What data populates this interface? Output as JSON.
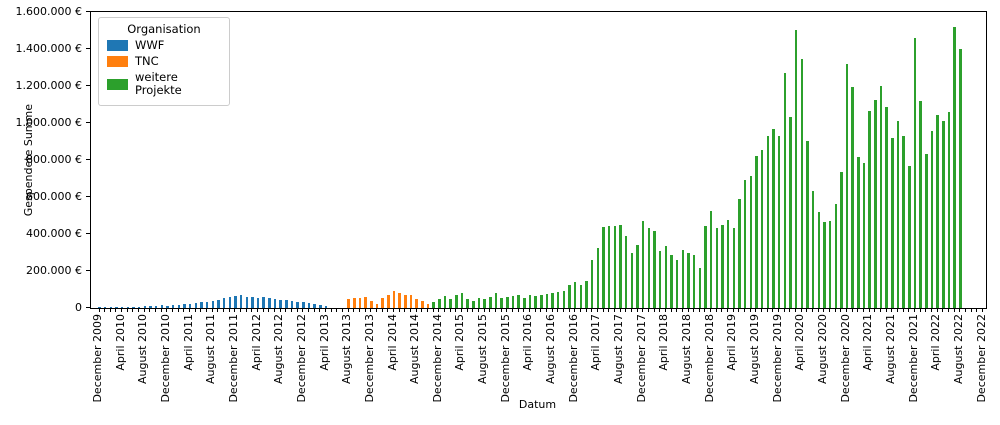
{
  "chart_data": {
    "type": "bar",
    "title": "",
    "xlabel": "Datum",
    "ylabel": "Gespendete Summe",
    "currency": "€",
    "ylim": [
      0,
      1600000
    ],
    "y_tick_interval": 200000,
    "x_range": [
      "2009-12",
      "2022-12"
    ],
    "x_minor_tick": "monthly",
    "x_label_step_months": 4,
    "grid": false,
    "legend_title": "Organisation",
    "legend_position": "upper left",
    "y_tick_labels": [
      "0",
      "200.000 €",
      "400.000 €",
      "600.000 €",
      "800.000 €",
      "1.000.000 €",
      "1.200.000 €",
      "1.400.000 €",
      "1.600.000 €"
    ],
    "x_tick_labels": [
      "December 2009",
      "April 2010",
      "August 2010",
      "December 2010",
      "April 2011",
      "August 2011",
      "December 2011",
      "April 2012",
      "August 2012",
      "December 2012",
      "April 2013",
      "August 2013",
      "December 2013",
      "April 2014",
      "August 2014",
      "December 2014",
      "April 2015",
      "August 2015",
      "December 2015",
      "April 2016",
      "August 2016",
      "December 2016",
      "April 2017",
      "August 2017",
      "December 2017",
      "April 2018",
      "August 2018",
      "December 2018",
      "April 2019",
      "August 2019",
      "December 2019",
      "April 2020",
      "August 2020",
      "December 2020",
      "April 2021",
      "August 2021",
      "December 2021",
      "April 2022",
      "August 2022",
      "December 2022"
    ],
    "series": [
      {
        "name": "WWF",
        "color": "#1f77b4",
        "start": "2009-12",
        "monthly_values_eur": [
          6000,
          5000,
          6000,
          7000,
          6000,
          7000,
          8000,
          7000,
          9000,
          10000,
          12000,
          14000,
          12000,
          15000,
          17000,
          20000,
          22000,
          26000,
          30000,
          34000,
          38000,
          45000,
          52000,
          58000,
          65000,
          70000,
          62000,
          58000,
          55000,
          57000,
          52000,
          48000,
          45000,
          42000,
          38000,
          35000,
          30000,
          25000,
          20000,
          16000,
          10000
        ]
      },
      {
        "name": "TNC",
        "color": "#ff7f0e",
        "start": "2013-08",
        "monthly_values_eur": [
          50000,
          54000,
          54000,
          58000,
          36000,
          22000,
          54000,
          72000,
          90000,
          81000,
          68000,
          72000,
          50000,
          36000,
          22000
        ]
      },
      {
        "name": "weitere Projekte",
        "color": "#2ca02c",
        "start": "2014-11",
        "monthly_values_eur": [
          35000,
          50000,
          63000,
          49000,
          72000,
          80000,
          50000,
          40000,
          54000,
          50000,
          58000,
          81000,
          54000,
          58000,
          63000,
          72000,
          54000,
          68000,
          63000,
          72000,
          76000,
          81000,
          86000,
          94000,
          126000,
          140000,
          126000,
          144000,
          261000,
          324000,
          438000,
          445000,
          443000,
          450000,
          387000,
          297000,
          340000,
          470000,
          430000,
          415000,
          310000,
          333000,
          288000,
          261000,
          315000,
          297000,
          288000,
          216000,
          442000,
          523000,
          432000,
          450000,
          477000,
          432000,
          590000,
          692000,
          715000,
          820000,
          855000,
          928000,
          967000,
          930000,
          1270000,
          1032000,
          1504000,
          1346000,
          903000,
          632000,
          520000,
          465000,
          470000,
          560000,
          735000,
          1318000,
          1194000,
          815000,
          784000,
          1067000,
          1126000,
          1199000,
          1085000,
          919000,
          1011000,
          930000,
          768000,
          1460000,
          1119000,
          832000,
          957000,
          1043000,
          1011000,
          1060000,
          1519000,
          1398000
        ]
      }
    ]
  }
}
